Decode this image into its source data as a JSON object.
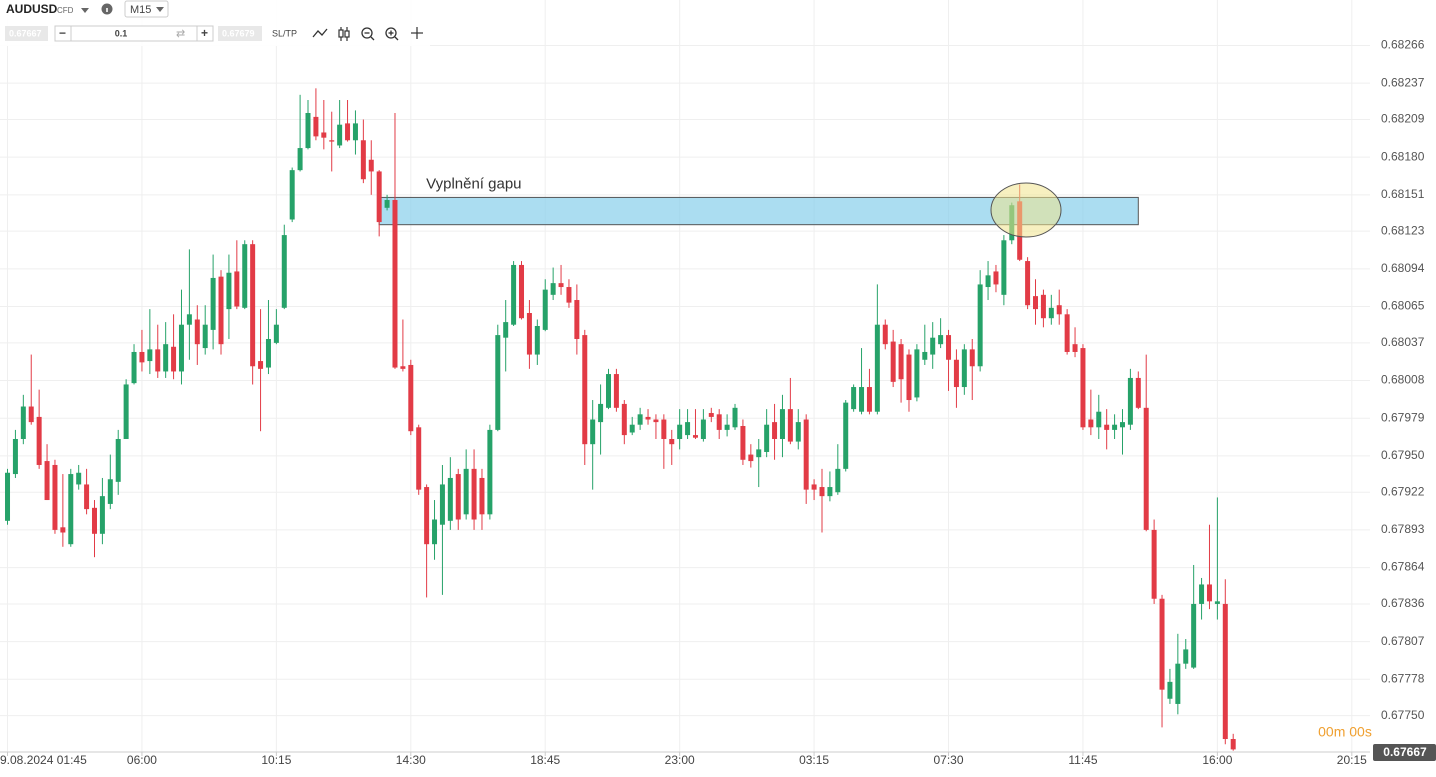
{
  "toolbar": {
    "symbol": "AUDUSD",
    "symbol_type": "CFD",
    "timeframe": "M15",
    "bid": "0.67667",
    "volume": "0.1",
    "ask": "0.67679",
    "sltp": "SL/TP"
  },
  "chart_data": {
    "type": "candlestick",
    "open": [
      0.679,
      0.67936,
      0.67963,
      0.67988,
      0.6798,
      0.67946,
      0.67943,
      0.67895,
      0.67882,
      0.67928,
      0.67928,
      0.6791,
      0.6789,
      0.67913,
      0.6793,
      0.67963,
      0.68006,
      0.6803,
      0.68023,
      0.68032,
      0.68015,
      0.68034,
      0.68015,
      0.68051,
      0.68055,
      0.68033,
      0.68047,
      0.68088,
      0.68063,
      0.68092,
      0.68064,
      0.68113,
      0.68023,
      0.68018,
      0.68037,
      0.68064,
      0.68132,
      0.6817,
      0.68187,
      0.68211,
      0.68199,
      0.68193,
      0.68189,
      0.68206,
      0.68193,
      0.68193,
      0.68178,
      0.68169,
      0.68141,
      0.68147,
      0.68019,
      0.6802,
      0.67972,
      0.67926,
      0.67882,
      0.67897,
      0.679,
      0.67936,
      0.67905,
      0.6794,
      0.67933,
      0.67905,
      0.6797,
      0.68041,
      0.68051,
      0.68097,
      0.6806,
      0.68028,
      0.68047,
      0.68074,
      0.68083,
      0.6808,
      0.6807,
      0.68043,
      0.67959,
      0.67976,
      0.67987,
      0.68013,
      0.6799,
      0.67968,
      0.67974,
      0.6798,
      0.67978,
      0.67978,
      0.67963,
      0.67963,
      0.67966,
      0.67966,
      0.67963,
      0.67983,
      0.67982,
      0.6797,
      0.67972,
      0.67973,
      0.67951,
      0.67949,
      0.67953,
      0.67976,
      0.67963,
      0.67986,
      0.67961,
      0.67978,
      0.67928,
      0.67926,
      0.67919,
      0.67922,
      0.6794,
      0.67986,
      0.67984,
      0.68003,
      0.67984,
      0.68051,
      0.68038,
      0.68036,
      0.68028,
      0.67995,
      0.68024,
      0.68028,
      0.68036,
      0.68043,
      0.68024,
      0.68003,
      0.68032,
      0.68019,
      0.6808,
      0.68092,
      0.68074,
      0.68116,
      0.68146,
      0.681,
      0.68073,
      0.68074,
      0.68056,
      0.68066,
      0.68059,
      0.68036,
      0.68033,
      0.67978,
      0.67972,
      0.67974,
      0.6797,
      0.67972,
      0.67974,
      0.6801,
      0.67987,
      0.67893,
      0.6784,
      0.67763,
      0.67759,
      0.6779,
      0.67787,
      0.67836,
      0.67851,
      0.67836,
      0.67836,
      0.67732
    ],
    "close": [
      0.67937,
      0.67963,
      0.67988,
      0.67976,
      0.67943,
      0.67916,
      0.67893,
      0.67891,
      0.67936,
      0.67937,
      0.67909,
      0.6789,
      0.67919,
      0.67932,
      0.67963,
      0.68005,
      0.6803,
      0.68022,
      0.68032,
      0.68015,
      0.68036,
      0.68015,
      0.68051,
      0.68059,
      0.68036,
      0.68051,
      0.68087,
      0.68036,
      0.68091,
      0.68065,
      0.68113,
      0.68019,
      0.68017,
      0.6804,
      0.68051,
      0.6812,
      0.6817,
      0.68187,
      0.68214,
      0.68196,
      0.68195,
      0.68192,
      0.68205,
      0.68193,
      0.68206,
      0.68163,
      0.68169,
      0.6813,
      0.68147,
      0.68018,
      0.68017,
      0.67969,
      0.67924,
      0.67882,
      0.67901,
      0.67928,
      0.67933,
      0.67901,
      0.6794,
      0.67901,
      0.67905,
      0.6797,
      0.68043,
      0.68053,
      0.68097,
      0.68056,
      0.68028,
      0.6805,
      0.68078,
      0.68083,
      0.6808,
      0.68068,
      0.6804,
      0.67959,
      0.67978,
      0.6799,
      0.68013,
      0.67987,
      0.67966,
      0.67974,
      0.67982,
      0.67978,
      0.67976,
      0.67963,
      0.67959,
      0.67974,
      0.67976,
      0.67964,
      0.67978,
      0.6798,
      0.6797,
      0.67974,
      0.67987,
      0.67947,
      0.67946,
      0.67955,
      0.67974,
      0.67963,
      0.67986,
      0.67961,
      0.67976,
      0.67924,
      0.67924,
      0.67919,
      0.67926,
      0.6794,
      0.67991,
      0.68003,
      0.68003,
      0.67984,
      0.68051,
      0.68036,
      0.68007,
      0.68009,
      0.67993,
      0.68032,
      0.6803,
      0.68041,
      0.68043,
      0.68024,
      0.68003,
      0.68032,
      0.68019,
      0.68082,
      0.68089,
      0.68082,
      0.68116,
      0.68143,
      0.68101,
      0.68066,
      0.68063,
      0.68056,
      0.68064,
      0.68059,
      0.6803,
      0.6803,
      0.67972,
      0.67972,
      0.67984,
      0.6797,
      0.67974,
      0.67976,
      0.6801,
      0.67987,
      0.67893,
      0.6784,
      0.6777,
      0.67776,
      0.6779,
      0.67801,
      0.67836,
      0.67851,
      0.67838,
      0.67838,
      0.67732,
      0.67724
    ],
    "high": [
      0.6794,
      0.6797,
      0.67997,
      0.68028,
      0.68001,
      0.67959,
      0.67947,
      0.67936,
      0.6794,
      0.67943,
      0.6794,
      0.67916,
      0.67933,
      0.67951,
      0.6797,
      0.68009,
      0.68036,
      0.68047,
      0.68063,
      0.68051,
      0.68053,
      0.68059,
      0.68078,
      0.68109,
      0.68066,
      0.68066,
      0.68105,
      0.68093,
      0.68105,
      0.68116,
      0.68116,
      0.68116,
      0.68063,
      0.6807,
      0.68063,
      0.68128,
      0.68172,
      0.68228,
      0.68224,
      0.68233,
      0.68224,
      0.68215,
      0.68224,
      0.68224,
      0.68216,
      0.68209,
      0.68193,
      0.6817,
      0.68151,
      0.68214,
      0.68055,
      0.68024,
      0.67974,
      0.67928,
      0.67916,
      0.67943,
      0.67949,
      0.6794,
      0.67955,
      0.67955,
      0.6794,
      0.67974,
      0.68051,
      0.6807,
      0.681,
      0.681,
      0.6807,
      0.68055,
      0.68086,
      0.68095,
      0.68097,
      0.68086,
      0.68082,
      0.68047,
      0.67993,
      0.68005,
      0.68017,
      0.68017,
      0.67993,
      0.6798,
      0.67987,
      0.67986,
      0.67982,
      0.67982,
      0.6797,
      0.67986,
      0.67986,
      0.67986,
      0.67986,
      0.67987,
      0.67986,
      0.67982,
      0.6799,
      0.67978,
      0.67959,
      0.67963,
      0.67986,
      0.6799,
      0.67997,
      0.6801,
      0.67986,
      0.67982,
      0.67932,
      0.6794,
      0.67938,
      0.67959,
      0.67993,
      0.68005,
      0.68033,
      0.68017,
      0.68082,
      0.68055,
      0.68047,
      0.6804,
      0.68032,
      0.68036,
      0.68051,
      0.68053,
      0.68056,
      0.68047,
      0.68032,
      0.68036,
      0.6804,
      0.68093,
      0.681,
      0.68097,
      0.6812,
      0.68145,
      0.68159,
      0.68103,
      0.68086,
      0.68078,
      0.68074,
      0.68078,
      0.68063,
      0.68049,
      0.68036,
      0.68001,
      0.67997,
      0.67986,
      0.67982,
      0.67986,
      0.68017,
      0.68015,
      0.68028,
      0.67901,
      0.67843,
      0.67786,
      0.67813,
      0.67809,
      0.67866,
      0.67856,
      0.67897,
      0.67918,
      0.67855,
      0.67736
    ],
    "low": [
      0.67897,
      0.67933,
      0.67959,
      0.67974,
      0.6794,
      0.67916,
      0.6789,
      0.6788,
      0.6788,
      0.67924,
      0.67905,
      0.67872,
      0.67882,
      0.67909,
      0.6792,
      0.67963,
      0.68005,
      0.68015,
      0.68013,
      0.6801,
      0.6801,
      0.68009,
      0.68005,
      0.68024,
      0.6802,
      0.68028,
      0.68032,
      0.68028,
      0.6804,
      0.68063,
      0.68063,
      0.68005,
      0.67969,
      0.68013,
      0.68036,
      0.68063,
      0.6813,
      0.68169,
      0.68186,
      0.68193,
      0.68186,
      0.68169,
      0.68187,
      0.68192,
      0.68182,
      0.6816,
      0.68151,
      0.68119,
      0.68139,
      0.68017,
      0.68015,
      0.67966,
      0.6792,
      0.67841,
      0.6787,
      0.67843,
      0.67893,
      0.67893,
      0.67901,
      0.67893,
      0.67893,
      0.67901,
      0.67969,
      0.68015,
      0.6805,
      0.68055,
      0.68017,
      0.6802,
      0.68046,
      0.6807,
      0.68074,
      0.68064,
      0.68028,
      0.67943,
      0.67924,
      0.67951,
      0.67986,
      0.67984,
      0.67959,
      0.67966,
      0.6797,
      0.67974,
      0.67963,
      0.6794,
      0.67943,
      0.67955,
      0.67963,
      0.67963,
      0.67961,
      0.67976,
      0.67963,
      0.67965,
      0.6797,
      0.67943,
      0.67941,
      0.67926,
      0.67949,
      0.67947,
      0.67949,
      0.67959,
      0.67955,
      0.67913,
      0.67916,
      0.67891,
      0.67915,
      0.6792,
      0.67938,
      0.67984,
      0.67982,
      0.67982,
      0.67982,
      0.68032,
      0.68003,
      0.67991,
      0.67984,
      0.67992,
      0.6802,
      0.68017,
      0.68033,
      0.68,
      0.67987,
      0.67997,
      0.67993,
      0.68015,
      0.6807,
      0.68076,
      0.68066,
      0.68113,
      0.681,
      0.68063,
      0.68051,
      0.68049,
      0.68051,
      0.68051,
      0.68028,
      0.68026,
      0.6797,
      0.67966,
      0.67963,
      0.67955,
      0.67963,
      0.67951,
      0.6797,
      0.67986,
      0.67892,
      0.67836,
      0.67741,
      0.67759,
      0.67751,
      0.67786,
      0.67786,
      0.67824,
      0.67832,
      0.67824,
      0.67728,
      0.67723
    ],
    "up_color": "#26a269",
    "down_color": "#e23b46",
    "xlim": [
      -0.95,
      172.3
    ],
    "xticks": [
      {
        "value": 0,
        "label": "9.08.2024 01:45"
      },
      {
        "value": 17,
        "label": "06:00"
      },
      {
        "value": 34,
        "label": "10:15"
      },
      {
        "value": 51,
        "label": "14:30"
      },
      {
        "value": 68,
        "label": "18:45"
      },
      {
        "value": 85,
        "label": "23:00"
      },
      {
        "value": 102,
        "label": "03:15"
      },
      {
        "value": 119,
        "label": "07:30"
      },
      {
        "value": 136,
        "label": "11:45"
      },
      {
        "value": 153,
        "label": "16:00"
      },
      {
        "value": 170,
        "label": "20:15"
      }
    ],
    "ylim": [
      0.67722,
      0.68301
    ],
    "yticks": [
      0.68266,
      0.68237,
      0.68209,
      {
        "value": 0.6818,
        "label": "0.68180"
      },
      0.68151,
      0.68123,
      0.68094,
      0.68065,
      0.68037,
      0.68008,
      0.67979,
      {
        "value": 0.6795,
        "label": "0.67950"
      },
      0.67922,
      0.67893,
      0.67864,
      0.67836,
      0.67807,
      0.67778,
      {
        "value": 0.6775,
        "label": "0.67750"
      }
    ],
    "grid": true,
    "annotation": {
      "text": "Vyplnění gapu",
      "zone": {
        "x": [
          47,
          143
        ],
        "y": [
          0.68128,
          0.68149
        ]
      }
    },
    "price_tag": "0.67667",
    "timer": "00m 00s"
  }
}
